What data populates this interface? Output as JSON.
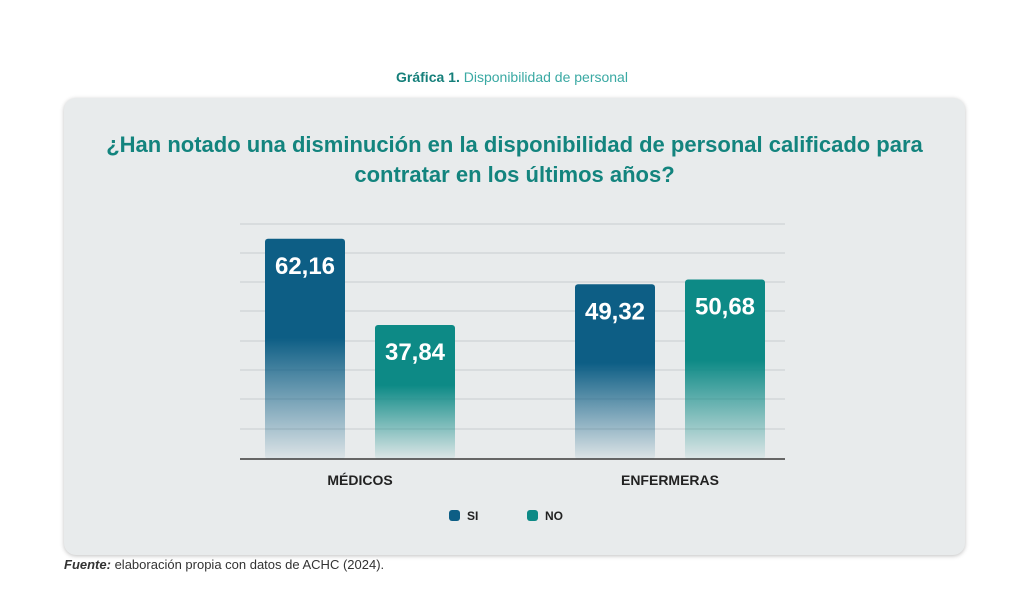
{
  "figure": {
    "number": "Gráfica 1.",
    "description": "Disponibilidad de personal"
  },
  "question": "¿Han notado una disminución en la disponibilidad de personal calificado para contratar en los últimos años?",
  "source": {
    "label": "Fuente:",
    "text": "elaboración propia con datos de ACHC (2024)."
  },
  "colors": {
    "si": "#0d5e85",
    "no": "#0d8a86",
    "panel": "#e8ebec",
    "accent": "#13847e"
  },
  "chart_data": {
    "type": "bar",
    "categories": [
      "MÉDICOS",
      "ENFERMERAS"
    ],
    "series": [
      {
        "name": "SI",
        "values": [
          62.16,
          49.32
        ],
        "labels": [
          "62,16",
          "49,32"
        ]
      },
      {
        "name": "NO",
        "values": [
          37.84,
          50.68
        ],
        "labels": [
          "37,84",
          "50,68"
        ]
      }
    ],
    "ylim": [
      0,
      70
    ],
    "grid": true,
    "legend_position": "bottom"
  }
}
